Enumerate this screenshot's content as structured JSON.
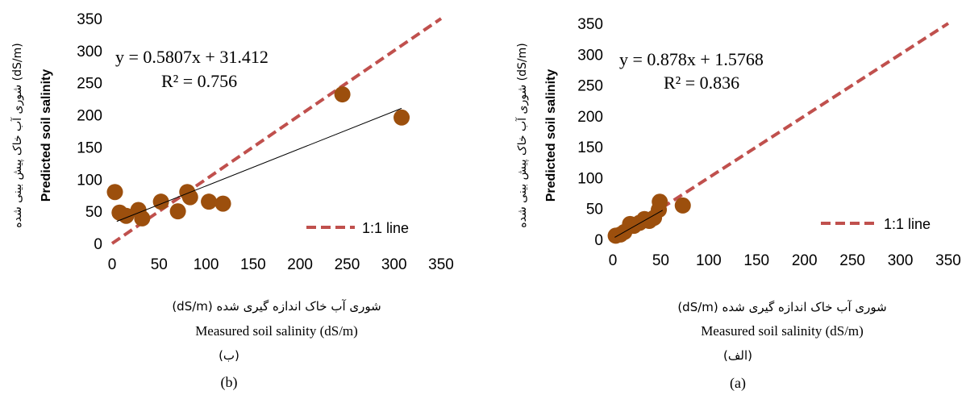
{
  "colors": {
    "points": "#9c4f0d",
    "one_to_one": "#c0504d",
    "trend": "#000000"
  },
  "chart_data": [
    {
      "type": "scatter",
      "panel": "b",
      "caption_fa": "(ب)",
      "caption_en": "(b)",
      "xlabel_fa": "شوری آب خاک اندازه گیری شده (dS/m)",
      "xlabel_en": "Measured soil salinity  (dS/m)",
      "ylabel_en": "Predicted soil salinity",
      "ylabel_fa": "(dS/m) شوری آب خاک پیش بینی شده",
      "xlim": [
        0,
        350
      ],
      "ylim": [
        0,
        350
      ],
      "xticks": [
        0,
        50,
        100,
        150,
        200,
        250,
        300,
        350
      ],
      "yticks": [
        0,
        50,
        100,
        150,
        200,
        250,
        300,
        350
      ],
      "equation": "y = 0.5807x + 31.412",
      "r2": "R² = 0.756",
      "trend": {
        "slope": 0.5807,
        "intercept": 31.412,
        "x_range": [
          5,
          308
        ]
      },
      "legend": {
        "label": "1:1 line",
        "position": "bottom-right"
      },
      "points": [
        [
          3,
          80
        ],
        [
          8,
          48
        ],
        [
          15,
          43
        ],
        [
          28,
          52
        ],
        [
          32,
          39
        ],
        [
          52,
          65
        ],
        [
          70,
          50
        ],
        [
          80,
          80
        ],
        [
          83,
          72
        ],
        [
          103,
          65
        ],
        [
          118,
          62
        ],
        [
          245,
          232
        ],
        [
          308,
          196
        ]
      ]
    },
    {
      "type": "scatter",
      "panel": "a",
      "caption_fa": "(الف)",
      "caption_en": "(a)",
      "xlabel_fa": "شوری آب خاک اندازه گیری شده (dS/m)",
      "xlabel_en": "Measured soil salinity  (dS/m)",
      "ylabel_en": "Predicted soil salinity",
      "ylabel_fa": "(dS/m) شوری آب خاک پیش بینی شده",
      "xlim": [
        0,
        350
      ],
      "ylim": [
        0,
        350
      ],
      "xticks": [
        0,
        50,
        100,
        150,
        200,
        250,
        300,
        350
      ],
      "yticks": [
        0,
        50,
        100,
        150,
        200,
        250,
        300,
        350
      ],
      "equation": "y = 0.878x + 1.5768",
      "r2": "R² = 0.836",
      "trend": {
        "slope": 0.878,
        "intercept": 1.5768,
        "x_range": [
          2,
          52
        ]
      },
      "legend": {
        "label": "1:1 line",
        "position": "bottom-right"
      },
      "points": [
        [
          3,
          6
        ],
        [
          8,
          8
        ],
        [
          12,
          12
        ],
        [
          18,
          25
        ],
        [
          22,
          22
        ],
        [
          28,
          27
        ],
        [
          33,
          33
        ],
        [
          38,
          30
        ],
        [
          43,
          35
        ],
        [
          48,
          48
        ],
        [
          49,
          61
        ],
        [
          73,
          55
        ]
      ]
    }
  ]
}
